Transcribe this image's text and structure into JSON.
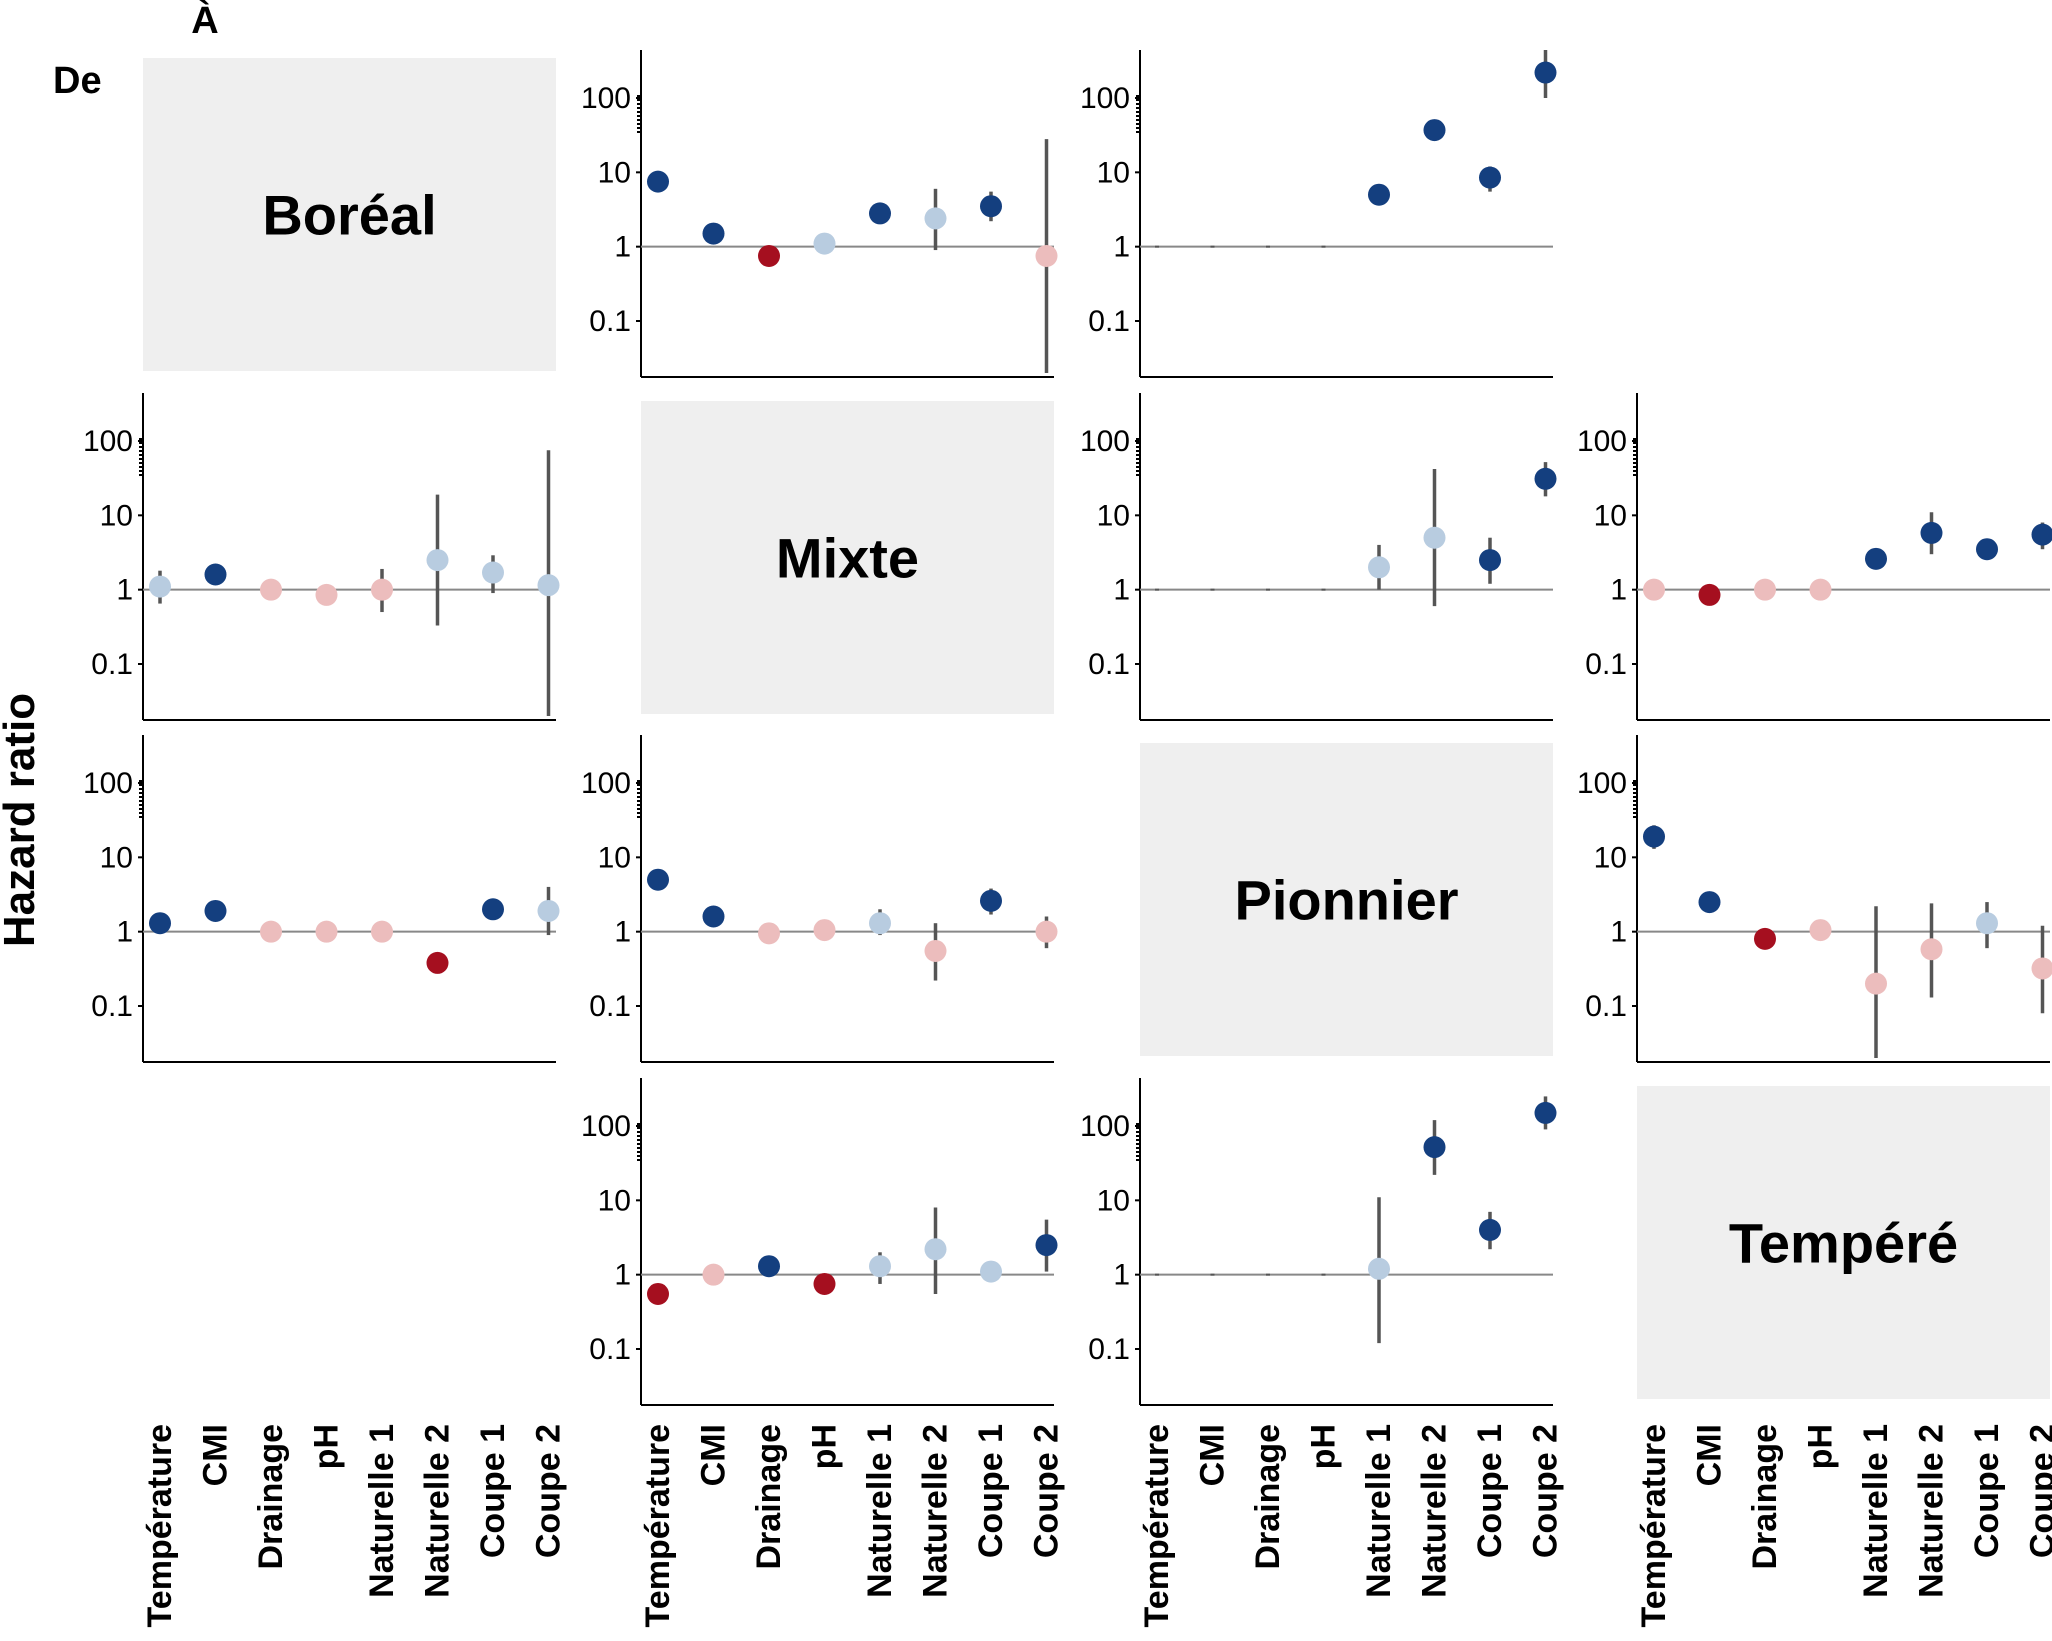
{
  "header": {
    "to_label": "À",
    "from_label": "De"
  },
  "y_axis_label": "Hazard ratio",
  "colors": {
    "strong_positive": "#143f7f",
    "weak_positive": "#b8cce0",
    "weak_negative": "#ecbdbd",
    "strong_negative": "#a50f1f",
    "interval": "#555555",
    "reference": "#888888",
    "diagonal_bg": "#efefef"
  },
  "chart_data": {
    "type": "scatter",
    "layout": "4x4 matrix",
    "ylabel": "Hazard ratio",
    "yscale": "log",
    "ylim": [
      0.02,
      400
    ],
    "yticks": [
      "100",
      "10",
      "1",
      "0.1"
    ],
    "reference_line": 1,
    "categories": [
      "Température",
      "CMI",
      "Drainage",
      "pH",
      "Naturelle 1",
      "Naturelle 2",
      "Coupe 1",
      "Coupe 2"
    ],
    "states": [
      "Boréal",
      "Mixte",
      "Pionnier",
      "Tempéré"
    ],
    "panels": [
      {
        "from": "Boréal",
        "to": "Mixte",
        "points": [
          {
            "hr": 7.5,
            "color": "strong_positive"
          },
          {
            "hr": 1.5,
            "color": "strong_positive"
          },
          {
            "hr": 0.75,
            "color": "strong_negative"
          },
          {
            "hr": 1.1,
            "color": "weak_positive"
          },
          {
            "hr": 2.8,
            "color": "strong_positive"
          },
          {
            "hr": 2.4,
            "lo": 0.9,
            "hi": 6,
            "color": "weak_positive"
          },
          {
            "hr": 3.5,
            "lo": 2.2,
            "hi": 5.5,
            "color": "strong_positive"
          },
          {
            "hr": 0.75,
            "lo": 0.02,
            "hi": 28,
            "color": "weak_negative"
          }
        ]
      },
      {
        "from": "Boréal",
        "to": "Pionnier",
        "points": [
          {
            "hr": 1,
            "color": "none"
          },
          {
            "hr": 1,
            "color": "none"
          },
          {
            "hr": 1,
            "color": "none"
          },
          {
            "hr": 1,
            "color": "none"
          },
          {
            "hr": 5,
            "color": "strong_positive"
          },
          {
            "hr": 37,
            "color": "strong_positive"
          },
          {
            "hr": 8.5,
            "lo": 5.5,
            "hi": 12,
            "color": "strong_positive"
          },
          {
            "hr": 220,
            "lo": 100,
            "hi": 450,
            "color": "strong_positive"
          }
        ]
      },
      {
        "from": "Mixte",
        "to": "Boréal",
        "points": [
          {
            "hr": 1.1,
            "lo": 0.65,
            "hi": 1.8,
            "color": "weak_positive"
          },
          {
            "hr": 1.6,
            "color": "strong_positive"
          },
          {
            "hr": 1.0,
            "color": "weak_negative"
          },
          {
            "hr": 0.85,
            "color": "weak_negative"
          },
          {
            "hr": 1.0,
            "lo": 0.5,
            "hi": 1.9,
            "color": "weak_negative"
          },
          {
            "hr": 2.5,
            "lo": 0.33,
            "hi": 19,
            "color": "weak_positive"
          },
          {
            "hr": 1.7,
            "lo": 0.9,
            "hi": 2.9,
            "color": "weak_positive"
          },
          {
            "hr": 1.15,
            "lo": 0.02,
            "hi": 75,
            "color": "weak_positive"
          }
        ]
      },
      {
        "from": "Mixte",
        "to": "Pionnier",
        "points": [
          {
            "hr": 1,
            "color": "none"
          },
          {
            "hr": 1,
            "color": "none"
          },
          {
            "hr": 1,
            "color": "none"
          },
          {
            "hr": 1,
            "color": "none"
          },
          {
            "hr": 2.0,
            "lo": 1.0,
            "hi": 4.0,
            "color": "weak_positive"
          },
          {
            "hr": 5,
            "lo": 0.6,
            "hi": 42,
            "color": "weak_positive"
          },
          {
            "hr": 2.5,
            "lo": 1.2,
            "hi": 5.0,
            "color": "strong_positive"
          },
          {
            "hr": 31,
            "lo": 18,
            "hi": 52,
            "color": "strong_positive"
          }
        ]
      },
      {
        "from": "Mixte",
        "to": "Tempéré",
        "points": [
          {
            "hr": 1.0,
            "color": "weak_negative"
          },
          {
            "hr": 0.85,
            "color": "strong_negative"
          },
          {
            "hr": 1.0,
            "color": "weak_negative"
          },
          {
            "hr": 1.0,
            "color": "weak_negative"
          },
          {
            "hr": 2.6,
            "color": "strong_positive"
          },
          {
            "hr": 5.8,
            "lo": 3.0,
            "hi": 11,
            "color": "strong_positive"
          },
          {
            "hr": 3.5,
            "color": "strong_positive"
          },
          {
            "hr": 5.5,
            "lo": 3.5,
            "hi": 8,
            "color": "strong_positive"
          }
        ]
      },
      {
        "from": "Pionnier",
        "to": "Boréal",
        "points": [
          {
            "hr": 1.3,
            "color": "strong_positive"
          },
          {
            "hr": 1.9,
            "color": "strong_positive"
          },
          {
            "hr": 1.0,
            "color": "weak_negative"
          },
          {
            "hr": 1.0,
            "color": "weak_negative"
          },
          {
            "hr": 1.0,
            "color": "weak_negative"
          },
          {
            "hr": 0.38,
            "color": "strong_negative"
          },
          {
            "hr": 2.0,
            "color": "strong_positive"
          },
          {
            "hr": 1.9,
            "lo": 0.9,
            "hi": 4,
            "color": "weak_positive"
          }
        ]
      },
      {
        "from": "Pionnier",
        "to": "Mixte",
        "points": [
          {
            "hr": 5,
            "color": "strong_positive"
          },
          {
            "hr": 1.6,
            "color": "strong_positive"
          },
          {
            "hr": 0.95,
            "color": "weak_negative"
          },
          {
            "hr": 1.05,
            "color": "weak_negative"
          },
          {
            "hr": 1.3,
            "lo": 0.9,
            "hi": 2.0,
            "color": "weak_positive"
          },
          {
            "hr": 0.55,
            "lo": 0.22,
            "hi": 1.3,
            "color": "weak_negative"
          },
          {
            "hr": 2.6,
            "lo": 1.7,
            "hi": 3.8,
            "color": "strong_positive"
          },
          {
            "hr": 1.0,
            "lo": 0.6,
            "hi": 1.6,
            "color": "weak_negative"
          }
        ]
      },
      {
        "from": "Pionnier",
        "to": "Tempéré",
        "points": [
          {
            "hr": 19,
            "lo": 13,
            "hi": 27,
            "color": "strong_positive"
          },
          {
            "hr": 2.5,
            "color": "strong_positive"
          },
          {
            "hr": 0.8,
            "color": "strong_negative"
          },
          {
            "hr": 1.05,
            "color": "weak_negative"
          },
          {
            "hr": 0.2,
            "lo": 0.02,
            "hi": 2.2,
            "color": "weak_negative"
          },
          {
            "hr": 0.58,
            "lo": 0.13,
            "hi": 2.4,
            "color": "weak_negative"
          },
          {
            "hr": 1.3,
            "lo": 0.6,
            "hi": 2.5,
            "color": "weak_positive"
          },
          {
            "hr": 0.32,
            "lo": 0.08,
            "hi": 1.2,
            "color": "weak_negative"
          }
        ]
      },
      {
        "from": "Tempéré",
        "to": "Mixte",
        "points": [
          {
            "hr": 0.55,
            "color": "strong_negative"
          },
          {
            "hr": 1.0,
            "color": "weak_negative"
          },
          {
            "hr": 1.3,
            "color": "strong_positive"
          },
          {
            "hr": 0.75,
            "color": "strong_negative"
          },
          {
            "hr": 1.3,
            "lo": 0.75,
            "hi": 2.0,
            "color": "weak_positive"
          },
          {
            "hr": 2.2,
            "lo": 0.55,
            "hi": 8,
            "color": "weak_positive"
          },
          {
            "hr": 1.1,
            "color": "weak_positive"
          },
          {
            "hr": 2.5,
            "lo": 1.1,
            "hi": 5.5,
            "color": "strong_positive"
          }
        ]
      },
      {
        "from": "Tempéré",
        "to": "Pionnier",
        "points": [
          {
            "hr": 1,
            "color": "none"
          },
          {
            "hr": 1,
            "color": "none"
          },
          {
            "hr": 1,
            "color": "none"
          },
          {
            "hr": 1,
            "color": "none"
          },
          {
            "hr": 1.2,
            "lo": 0.12,
            "hi": 11,
            "color": "weak_positive"
          },
          {
            "hr": 52,
            "lo": 22,
            "hi": 120,
            "color": "strong_positive"
          },
          {
            "hr": 4,
            "lo": 2.2,
            "hi": 7,
            "color": "strong_positive"
          },
          {
            "hr": 150,
            "lo": 90,
            "hi": 250,
            "color": "strong_positive"
          }
        ]
      }
    ]
  }
}
